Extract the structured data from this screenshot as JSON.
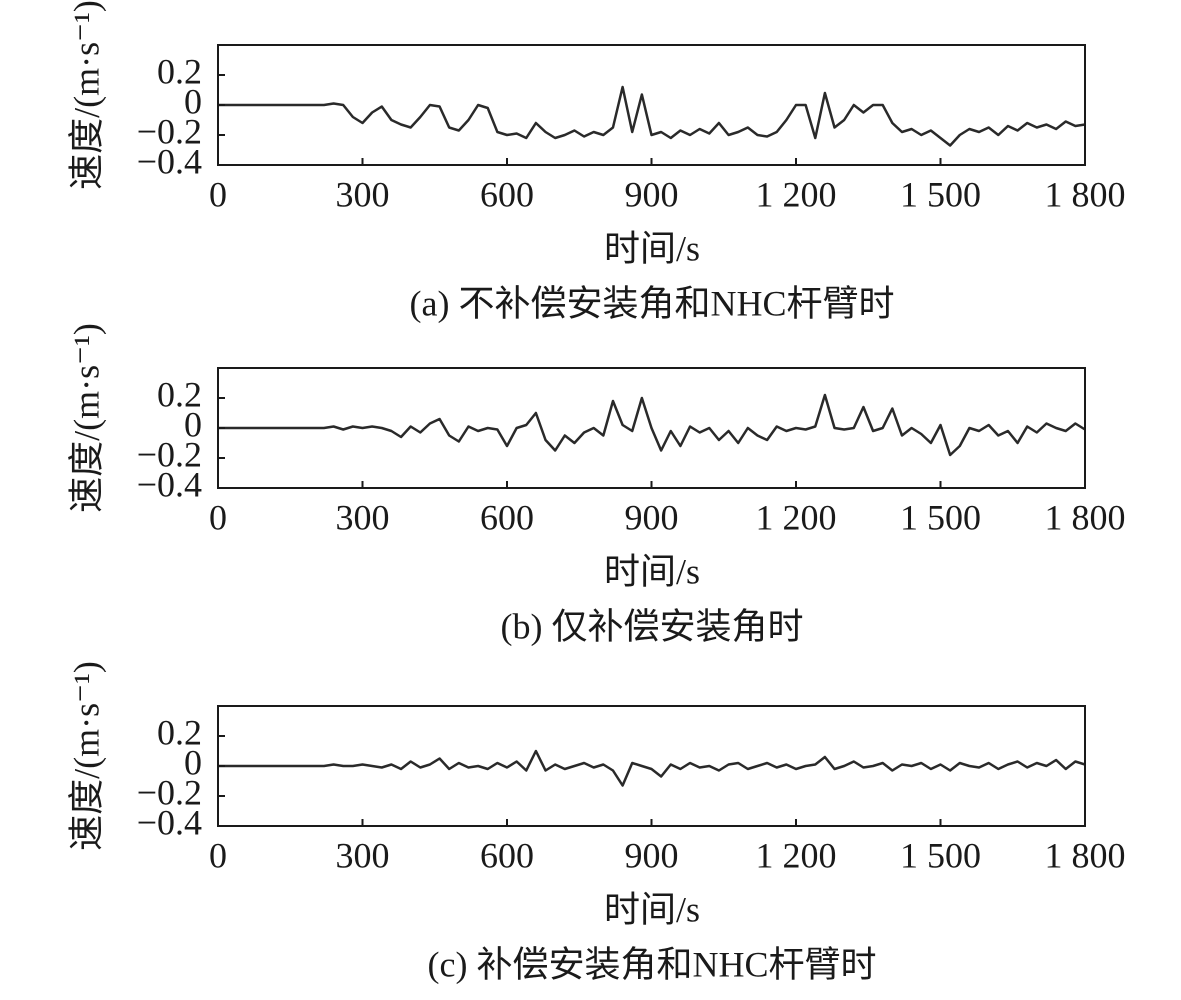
{
  "chart_data": [
    {
      "type": "line",
      "ylabel": "速度/(m·s⁻¹)",
      "xlabel": "时间/s",
      "caption": "(a) 不补偿安装角和NHC杆臂时",
      "x": [
        0,
        20,
        40,
        60,
        80,
        100,
        120,
        140,
        160,
        180,
        200,
        220,
        240,
        260,
        280,
        300,
        320,
        340,
        360,
        380,
        400,
        420,
        440,
        460,
        480,
        500,
        520,
        540,
        560,
        580,
        600,
        620,
        640,
        660,
        680,
        700,
        720,
        740,
        760,
        780,
        800,
        820,
        840,
        860,
        880,
        900,
        920,
        940,
        960,
        980,
        1000,
        1020,
        1040,
        1060,
        1080,
        1100,
        1120,
        1140,
        1160,
        1180,
        1200,
        1220,
        1240,
        1260,
        1280,
        1300,
        1320,
        1340,
        1360,
        1380,
        1400,
        1420,
        1440,
        1460,
        1480,
        1500,
        1520,
        1540,
        1560,
        1580,
        1600,
        1620,
        1640,
        1660,
        1680,
        1700,
        1720,
        1740,
        1760,
        1780,
        1800
      ],
      "series": [
        {
          "color": "#2a2a2a",
          "values": [
            0,
            0,
            0,
            0,
            0,
            0,
            0,
            0,
            0,
            0,
            0,
            0,
            0.01,
            0,
            -0.08,
            -0.12,
            -0.05,
            -0.01,
            -0.1,
            -0.13,
            -0.15,
            -0.08,
            0,
            -0.01,
            -0.15,
            -0.17,
            -0.1,
            0,
            -0.02,
            -0.18,
            -0.2,
            -0.19,
            -0.22,
            -0.12,
            -0.18,
            -0.22,
            -0.2,
            -0.17,
            -0.21,
            -0.18,
            -0.2,
            -0.15,
            0.12,
            -0.18,
            0.07,
            -0.2,
            -0.18,
            -0.22,
            -0.17,
            -0.2,
            -0.16,
            -0.19,
            -0.12,
            -0.2,
            -0.18,
            -0.15,
            -0.2,
            -0.21,
            -0.18,
            -0.1,
            0,
            0,
            -0.22,
            0.08,
            -0.15,
            -0.1,
            0,
            -0.05,
            0,
            0,
            -0.12,
            -0.18,
            -0.16,
            -0.2,
            -0.17,
            -0.22,
            -0.27,
            -0.2,
            -0.16,
            -0.18,
            -0.15,
            -0.2,
            -0.14,
            -0.17,
            -0.12,
            -0.15,
            -0.13,
            -0.16,
            -0.11,
            -0.14,
            -0.13
          ]
        }
      ],
      "xlim": [
        0,
        1800
      ],
      "ylim": [
        -0.4,
        0.4
      ],
      "xticks": [
        0,
        300,
        600,
        900,
        {
          "value": 1200,
          "label": "1 200"
        },
        {
          "value": 1500,
          "label": "1 500"
        },
        {
          "value": 1800,
          "label": "1 800"
        }
      ],
      "yticks": [
        {
          "value": -0.4,
          "label": "−0.4"
        },
        {
          "value": -0.2,
          "label": "−0.2"
        },
        0,
        0.2
      ]
    },
    {
      "type": "line",
      "ylabel": "速度/(m·s⁻¹)",
      "xlabel": "时间/s",
      "caption": "(b) 仅补偿安装角时",
      "x": [
        0,
        20,
        40,
        60,
        80,
        100,
        120,
        140,
        160,
        180,
        200,
        220,
        240,
        260,
        280,
        300,
        320,
        340,
        360,
        380,
        400,
        420,
        440,
        460,
        480,
        500,
        520,
        540,
        560,
        580,
        600,
        620,
        640,
        660,
        680,
        700,
        720,
        740,
        760,
        780,
        800,
        820,
        840,
        860,
        880,
        900,
        920,
        940,
        960,
        980,
        1000,
        1020,
        1040,
        1060,
        1080,
        1100,
        1120,
        1140,
        1160,
        1180,
        1200,
        1220,
        1240,
        1260,
        1280,
        1300,
        1320,
        1340,
        1360,
        1380,
        1400,
        1420,
        1440,
        1460,
        1480,
        1500,
        1520,
        1540,
        1560,
        1580,
        1600,
        1620,
        1640,
        1660,
        1680,
        1700,
        1720,
        1740,
        1760,
        1780,
        1800
      ],
      "series": [
        {
          "color": "#2a2a2a",
          "values": [
            0,
            0,
            0,
            0,
            0,
            0,
            0,
            0,
            0,
            0,
            0,
            0,
            0.01,
            -0.01,
            0.01,
            0,
            0.01,
            0,
            -0.02,
            -0.06,
            0.01,
            -0.03,
            0.03,
            0.06,
            -0.05,
            -0.09,
            0.01,
            -0.02,
            0,
            -0.01,
            -0.12,
            0,
            0.02,
            0.1,
            -0.08,
            -0.15,
            -0.05,
            -0.1,
            -0.03,
            0,
            -0.05,
            0.18,
            0.02,
            -0.02,
            0.2,
            0,
            -0.15,
            -0.02,
            -0.12,
            0.01,
            -0.03,
            0,
            -0.08,
            -0.02,
            -0.1,
            0,
            -0.05,
            -0.08,
            0.01,
            -0.02,
            0,
            -0.01,
            0.01,
            0.22,
            0,
            -0.01,
            0,
            0.14,
            -0.02,
            0,
            0.13,
            -0.05,
            0,
            -0.04,
            -0.1,
            0.02,
            -0.18,
            -0.12,
            0,
            -0.02,
            0.02,
            -0.05,
            -0.02,
            -0.1,
            0.01,
            -0.03,
            0.03,
            0,
            -0.02,
            0.03,
            -0.01
          ]
        }
      ],
      "xlim": [
        0,
        1800
      ],
      "ylim": [
        -0.4,
        0.4
      ],
      "xticks": [
        0,
        300,
        600,
        900,
        {
          "value": 1200,
          "label": "1 200"
        },
        {
          "value": 1500,
          "label": "1 500"
        },
        {
          "value": 1800,
          "label": "1 800"
        }
      ],
      "yticks": [
        {
          "value": -0.4,
          "label": "−0.4"
        },
        {
          "value": -0.2,
          "label": "−0.2"
        },
        0,
        0.2
      ]
    },
    {
      "type": "line",
      "ylabel": "速度/(m·s⁻¹)",
      "xlabel": "时间/s",
      "caption": "(c) 补偿安装角和NHC杆臂时",
      "x": [
        0,
        20,
        40,
        60,
        80,
        100,
        120,
        140,
        160,
        180,
        200,
        220,
        240,
        260,
        280,
        300,
        320,
        340,
        360,
        380,
        400,
        420,
        440,
        460,
        480,
        500,
        520,
        540,
        560,
        580,
        600,
        620,
        640,
        660,
        680,
        700,
        720,
        740,
        760,
        780,
        800,
        820,
        840,
        860,
        880,
        900,
        920,
        940,
        960,
        980,
        1000,
        1020,
        1040,
        1060,
        1080,
        1100,
        1120,
        1140,
        1160,
        1180,
        1200,
        1220,
        1240,
        1260,
        1280,
        1300,
        1320,
        1340,
        1360,
        1380,
        1400,
        1420,
        1440,
        1460,
        1480,
        1500,
        1520,
        1540,
        1560,
        1580,
        1600,
        1620,
        1640,
        1660,
        1680,
        1700,
        1720,
        1740,
        1760,
        1780,
        1800
      ],
      "series": [
        {
          "color": "#2a2a2a",
          "values": [
            0,
            0,
            0,
            0,
            0,
            0,
            0,
            0,
            0,
            0,
            0,
            0,
            0.01,
            0,
            0,
            0.01,
            0,
            -0.01,
            0.01,
            -0.02,
            0.03,
            -0.01,
            0.01,
            0.05,
            -0.02,
            0.02,
            -0.01,
            0,
            -0.02,
            0.02,
            -0.01,
            0.03,
            -0.03,
            0.1,
            -0.03,
            0.01,
            -0.02,
            0,
            0.02,
            -0.01,
            0.01,
            -0.03,
            -0.13,
            0.02,
            0,
            -0.02,
            -0.07,
            0.01,
            -0.02,
            0.02,
            -0.01,
            0,
            -0.03,
            0.01,
            0.02,
            -0.02,
            0,
            0.02,
            -0.01,
            0.01,
            -0.02,
            0,
            0.01,
            0.06,
            -0.02,
            0,
            0.03,
            -0.01,
            0,
            0.02,
            -0.03,
            0.01,
            0,
            0.02,
            -0.02,
            0.01,
            -0.03,
            0.02,
            0,
            -0.01,
            0.02,
            -0.02,
            0.01,
            0.03,
            -0.01,
            0.02,
            0,
            0.04,
            -0.02,
            0.03,
            0.01
          ]
        }
      ],
      "xlim": [
        0,
        1800
      ],
      "ylim": [
        -0.4,
        0.4
      ],
      "xticks": [
        0,
        300,
        600,
        900,
        {
          "value": 1200,
          "label": "1 200"
        },
        {
          "value": 1500,
          "label": "1 500"
        },
        {
          "value": 1800,
          "label": "1 800"
        }
      ],
      "yticks": [
        {
          "value": -0.4,
          "label": "−0.4"
        },
        {
          "value": -0.2,
          "label": "−0.2"
        },
        0,
        0.2
      ]
    }
  ]
}
